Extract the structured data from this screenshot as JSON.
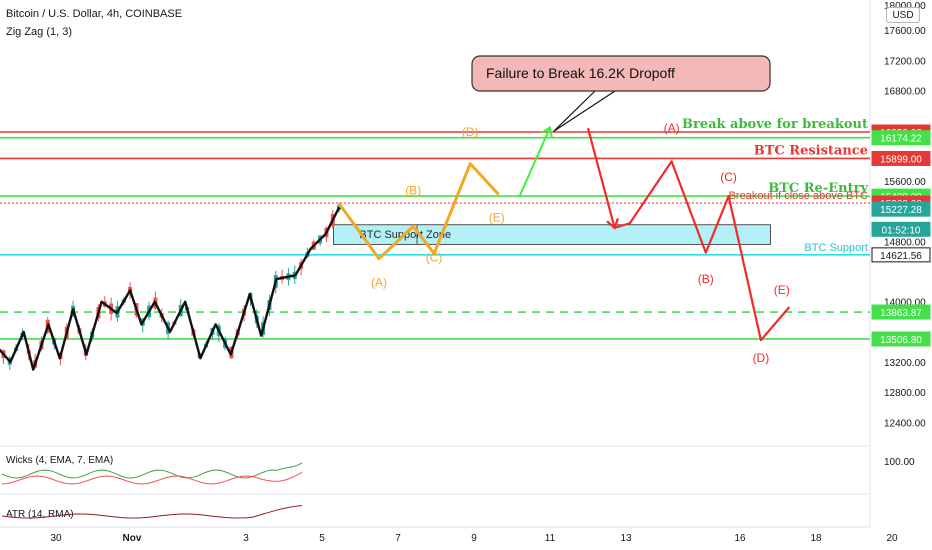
{
  "header": {
    "title": "Bitcoin / U.S. Dollar, 4h, COINBASE",
    "indicator": "Zig Zag (1, 3)",
    "currency_button": "USD"
  },
  "panes": {
    "wicks_label": "Wicks (4, EMA, 7, EMA)",
    "wicks_value": "100.00",
    "atr_label": "ATR (14, RMA)"
  },
  "colors": {
    "candle_up": "#26a69a",
    "candle_down": "#ef5350",
    "resistance_red": "#e53935",
    "support_green": "#43e04a",
    "support_cyan": "#26e0ef",
    "zone_fill": "#b2f0f5",
    "orange_path": "#f5a623",
    "red_path": "#ef2b2b",
    "bright_green": "#3ef03e",
    "callout_fill": "#f4b8b8"
  },
  "chart_data": {
    "type": "line",
    "y_axis": {
      "ticks": [
        17600,
        17200,
        16800,
        15600,
        14800,
        14000,
        13200,
        12800,
        12400
      ],
      "partial_top_tick": "18000.00",
      "ylim": [
        12100,
        18000
      ]
    },
    "x_axis": {
      "ticks": [
        {
          "label": "30",
          "t": -6
        },
        {
          "label": "Nov",
          "t": -4
        },
        {
          "label": "3",
          "t": -1
        },
        {
          "label": "5",
          "t": 1
        },
        {
          "label": "7",
          "t": 3
        },
        {
          "label": "9",
          "t": 5
        },
        {
          "label": "11",
          "t": 7
        },
        {
          "label": "13",
          "t": 9
        },
        {
          "label": "16",
          "t": 12
        },
        {
          "label": "18",
          "t": 14
        },
        {
          "label": "20",
          "t": 16
        }
      ]
    },
    "price_badges": [
      {
        "value": "16250.00",
        "y": 16250,
        "color": "#e53935"
      },
      {
        "value": "16174.22",
        "y": 16174,
        "color": "#43e04a"
      },
      {
        "value": "15899.00",
        "y": 15899,
        "color": "#e53935"
      },
      {
        "value": "15400.00",
        "y": 15400,
        "color": "#43e04a"
      },
      {
        "value": "15308.00",
        "y": 15308,
        "color": "#e53935"
      },
      {
        "value": "15227.28",
        "y": 15227,
        "color": "#26a69a"
      },
      {
        "value": "01:52:10",
        "y": 14960,
        "color": "#26a69a"
      },
      {
        "value": "14621.56",
        "y": 14621,
        "color": "#ffffff"
      },
      {
        "value": "13863.87",
        "y": 13863,
        "color": "#43e04a"
      },
      {
        "value": "13506.80",
        "y": 13506,
        "color": "#43e04a"
      }
    ],
    "hlines": [
      {
        "y": 16250,
        "color": "#e53935",
        "style": "solid",
        "label": "Break above for breakout",
        "label_color": "#3dba3d"
      },
      {
        "y": 16174,
        "color": "#43e04a",
        "style": "solid",
        "label": "",
        "label_color": ""
      },
      {
        "y": 15899,
        "color": "#e53935",
        "style": "solid",
        "label": "BTC Resistance",
        "label_color": "#e53935"
      },
      {
        "y": 15400,
        "color": "#43e04a",
        "style": "solid",
        "label": "BTC Re-Entry",
        "label_color": "#3dba3d"
      },
      {
        "y": 15308,
        "color": "#e53935",
        "style": "dotted",
        "label": "Breakout if close above BTC",
        "label_color": "#e53935"
      },
      {
        "y": 14621,
        "color": "#26e0ef",
        "style": "solid",
        "label": "BTC Support",
        "label_color": "#26c6da"
      },
      {
        "y": 13863,
        "color": "#43e04a",
        "style": "dashed",
        "label": "",
        "label_color": ""
      },
      {
        "y": 13506,
        "color": "#43e04a",
        "style": "solid",
        "label": "",
        "label_color": ""
      }
    ],
    "support_zone": {
      "label": "BTC Support Zone",
      "t_start": 1.3,
      "t_mid": 3.5,
      "t_end": 12.8,
      "y_top": 15020,
      "y_bottom": 14760
    },
    "price_path": [
      [
        -7.55,
        13400
      ],
      [
        -7.2,
        13200
      ],
      [
        -6.85,
        13600
      ],
      [
        -6.6,
        13100
      ],
      [
        -6.2,
        13700
      ],
      [
        -5.9,
        13250
      ],
      [
        -5.55,
        13900
      ],
      [
        -5.2,
        13300
      ],
      [
        -4.8,
        14000
      ],
      [
        -4.4,
        13850
      ],
      [
        -4.05,
        14150
      ],
      [
        -3.75,
        13700
      ],
      [
        -3.4,
        14000
      ],
      [
        -3.0,
        13600
      ],
      [
        -2.6,
        14000
      ],
      [
        -2.2,
        13250
      ],
      [
        -1.8,
        13700
      ],
      [
        -1.4,
        13300
      ],
      [
        -0.9,
        14100
      ],
      [
        -0.6,
        13550
      ],
      [
        -0.2,
        14300
      ],
      [
        0.3,
        14350
      ],
      [
        0.7,
        14700
      ],
      [
        1.1,
        14900
      ],
      [
        1.45,
        15250
      ]
    ],
    "orange_path": {
      "points": [
        [
          1.45,
          15300
        ],
        [
          2.5,
          14570
        ],
        [
          3.4,
          15000
        ],
        [
          3.95,
          14640
        ],
        [
          4.9,
          15830
        ],
        [
          5.65,
          15420
        ]
      ],
      "labels": [
        {
          "text": "(A)",
          "t": 2.5,
          "y": 14200
        },
        {
          "text": "(B)",
          "t": 3.4,
          "y": 15420
        },
        {
          "text": "(C)",
          "t": 3.95,
          "y": 14530
        },
        {
          "text": "(D)",
          "t": 4.9,
          "y": 16200
        },
        {
          "text": "(E)",
          "t": 5.6,
          "y": 15060
        }
      ]
    },
    "green_path": {
      "points": [
        [
          6.2,
          15400
        ],
        [
          7.0,
          16310
        ]
      ]
    },
    "red_path": {
      "points": [
        [
          8.0,
          16300
        ],
        [
          8.7,
          14980
        ],
        [
          9.1,
          15040
        ],
        [
          10.2,
          15860
        ],
        [
          11.1,
          14650
        ],
        [
          11.7,
          15400
        ],
        [
          12.55,
          13490
        ],
        [
          13.3,
          13930
        ]
      ],
      "labels": [
        {
          "text": "(A)",
          "t": 10.2,
          "y": 16250
        },
        {
          "text": "(B)",
          "t": 11.1,
          "y": 14250
        },
        {
          "text": "(C)",
          "t": 11.7,
          "y": 15600
        },
        {
          "text": "(D)",
          "t": 12.55,
          "y": 13200
        },
        {
          "text": "(E)",
          "t": 13.1,
          "y": 14100
        }
      ]
    },
    "callout": {
      "text": "Failure to Break 16.2K Dropoff",
      "pointer_t": 7.1,
      "pointer_y": 16260
    }
  }
}
